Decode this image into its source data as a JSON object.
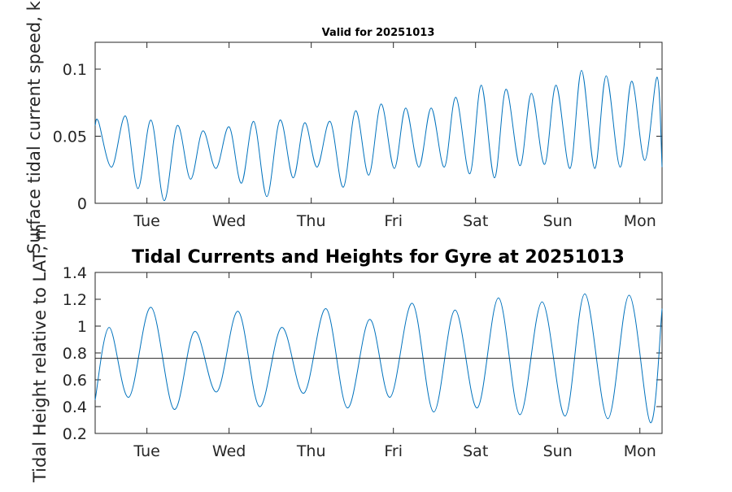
{
  "chart_data": [
    {
      "type": "line",
      "title": "Valid for 20251013",
      "xlabel": "",
      "ylabel": "Surface tidal current speed, kn",
      "xlim": [
        0,
        6.9
      ],
      "ylim": [
        0,
        0.12
      ],
      "x_ticks": [
        {
          "x": 0.63,
          "label": "Tue"
        },
        {
          "x": 1.63,
          "label": "Wed"
        },
        {
          "x": 2.63,
          "label": "Thu"
        },
        {
          "x": 3.63,
          "label": "Fri"
        },
        {
          "x": 4.63,
          "label": "Sat"
        },
        {
          "x": 5.63,
          "label": "Sun"
        },
        {
          "x": 6.63,
          "label": "Mon"
        }
      ],
      "y_ticks": [
        {
          "y": 0,
          "label": "0"
        },
        {
          "y": 0.05,
          "label": "0.05"
        },
        {
          "y": 0.1,
          "label": "0.1"
        }
      ],
      "series": [
        {
          "color": "#0072BD",
          "x": [
            0.0,
            0.04,
            0.2,
            0.37,
            0.52,
            0.68,
            0.84,
            1.0,
            1.16,
            1.31,
            1.47,
            1.63,
            1.78,
            1.93,
            2.09,
            2.25,
            2.41,
            2.55,
            2.7,
            2.86,
            3.02,
            3.17,
            3.33,
            3.48,
            3.64,
            3.78,
            3.94,
            4.09,
            4.25,
            4.39,
            4.56,
            4.7,
            4.86,
            5.0,
            5.17,
            5.31,
            5.47,
            5.61,
            5.78,
            5.92,
            6.08,
            6.22,
            6.39,
            6.53,
            6.69,
            6.84,
            6.9
          ],
          "y": [
            0.058,
            0.061,
            0.027,
            0.065,
            0.011,
            0.062,
            0.002,
            0.058,
            0.018,
            0.054,
            0.026,
            0.057,
            0.015,
            0.061,
            0.005,
            0.062,
            0.019,
            0.06,
            0.027,
            0.061,
            0.012,
            0.069,
            0.021,
            0.074,
            0.026,
            0.071,
            0.027,
            0.071,
            0.027,
            0.079,
            0.022,
            0.088,
            0.019,
            0.085,
            0.028,
            0.082,
            0.029,
            0.088,
            0.026,
            0.099,
            0.026,
            0.095,
            0.027,
            0.091,
            0.032,
            0.094,
            0.027
          ]
        }
      ]
    },
    {
      "type": "line",
      "title": "Tidal Currents and Heights for Gyre at 20251013",
      "xlabel": "",
      "ylabel": "Tidal Height relative to LAT, m",
      "xlim": [
        0,
        6.9
      ],
      "ylim": [
        0.2,
        1.4
      ],
      "x_ticks": [
        {
          "x": 0.63,
          "label": "Tue"
        },
        {
          "x": 1.63,
          "label": "Wed"
        },
        {
          "x": 2.63,
          "label": "Thu"
        },
        {
          "x": 3.63,
          "label": "Fri"
        },
        {
          "x": 4.63,
          "label": "Sat"
        },
        {
          "x": 5.63,
          "label": "Sun"
        },
        {
          "x": 6.63,
          "label": "Mon"
        }
      ],
      "y_ticks": [
        {
          "y": 0.2,
          "label": "0.2"
        },
        {
          "y": 0.4,
          "label": "0.4"
        },
        {
          "y": 0.6,
          "label": "0.6"
        },
        {
          "y": 0.8,
          "label": "0.8"
        },
        {
          "y": 1.0,
          "label": "1"
        },
        {
          "y": 1.2,
          "label": "1.2"
        },
        {
          "y": 1.4,
          "label": "1.4"
        }
      ],
      "series": [
        {
          "color": "#0072BD",
          "x": [
            0.0,
            0.17,
            0.41,
            0.68,
            0.96,
            1.21,
            1.48,
            1.74,
            2.0,
            2.27,
            2.54,
            2.81,
            3.07,
            3.34,
            3.59,
            3.86,
            4.12,
            4.38,
            4.65,
            4.91,
            5.17,
            5.44,
            5.72,
            5.96,
            6.24,
            6.5,
            6.76,
            6.9
          ],
          "y": [
            0.45,
            0.99,
            0.47,
            1.14,
            0.38,
            0.96,
            0.51,
            1.11,
            0.4,
            0.99,
            0.5,
            1.13,
            0.39,
            1.05,
            0.47,
            1.17,
            0.36,
            1.12,
            0.39,
            1.21,
            0.34,
            1.18,
            0.33,
            1.24,
            0.31,
            1.23,
            0.28,
            1.13
          ]
        },
        {
          "color": "#262626",
          "x": [
            0,
            6.9
          ],
          "y": [
            0.76,
            0.76
          ]
        }
      ]
    }
  ]
}
